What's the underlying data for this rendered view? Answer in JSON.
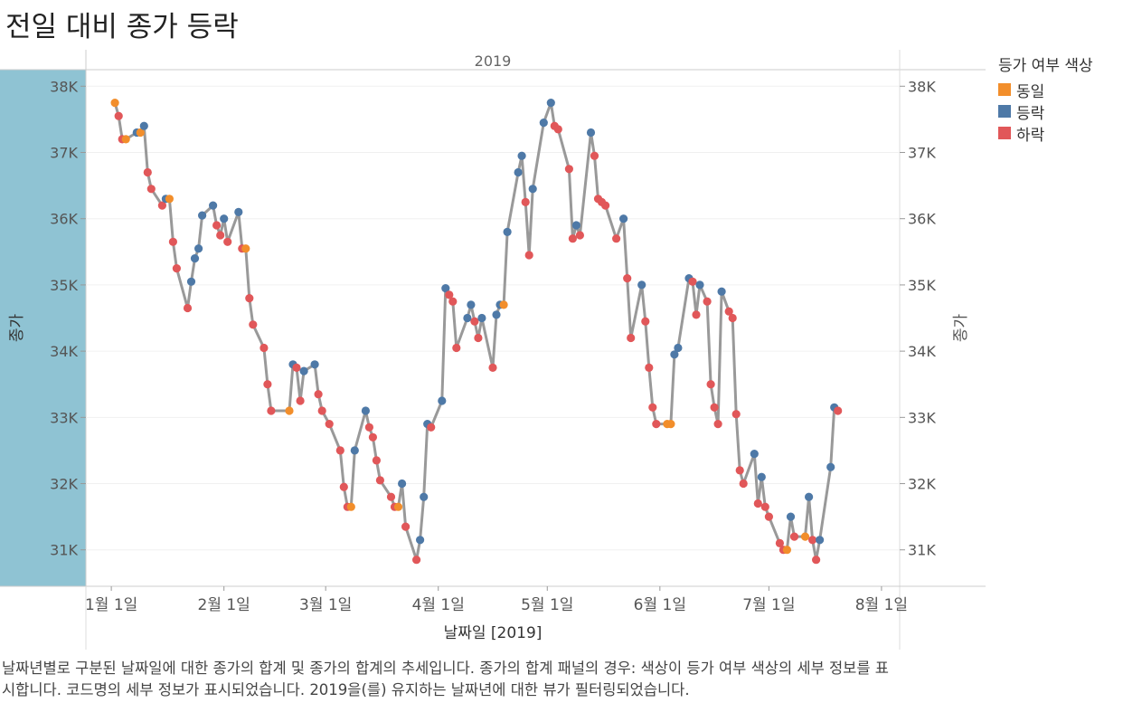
{
  "title": "전일 대비 종가 등락",
  "caption": "날짜년별로 구분된 날짜일에 대한 종가의 합계 및 종가의 합계의 추세입니다.  종가의 합계 패널의 경우:  색상이 등가 여부 색상의 세부 정보를 표시합니다.  코드명의 세부 정보가 표시되었습니다. 2019을(를) 유지하는 날짜년에 대한 뷰가 필터링되었습니다.",
  "legend": {
    "title": "등가 여부 색상",
    "items": [
      {
        "label": "동일",
        "color": "#f28e2b"
      },
      {
        "label": "등락",
        "color": "#4e79a7"
      },
      {
        "label": "하락",
        "color": "#e15759"
      }
    ]
  },
  "chart_data": {
    "type": "line",
    "panel_header": "2019",
    "ylabel_left": "종가",
    "ylabel_right": "종가",
    "xlabel": "날짜일 [2019]",
    "ylim": [
      30450,
      38250
    ],
    "yticks": [
      31000,
      32000,
      33000,
      34000,
      35000,
      36000,
      37000,
      38000
    ],
    "ytick_labels": [
      "31K",
      "32K",
      "33K",
      "34K",
      "35K",
      "36K",
      "37K",
      "38K"
    ],
    "xlim": [
      "2018-12-25",
      "2019-08-06"
    ],
    "xticks": [
      {
        "date": "2019-01-01",
        "label": "1월 1일"
      },
      {
        "date": "2019-02-01",
        "label": "2월 1일"
      },
      {
        "date": "2019-03-01",
        "label": "3월 1일"
      },
      {
        "date": "2019-04-01",
        "label": "4월 1일"
      },
      {
        "date": "2019-05-01",
        "label": "5월 1일"
      },
      {
        "date": "2019-06-01",
        "label": "6월 1일"
      },
      {
        "date": "2019-07-01",
        "label": "7월 1일"
      },
      {
        "date": "2019-08-01",
        "label": "8월 1일"
      }
    ],
    "line_color": "#999999",
    "category_colors": {
      "동일": "#f28e2b",
      "등락": "#4e79a7",
      "하락": "#e15759"
    },
    "points": [
      {
        "date": "2019-01-02",
        "close": 37750,
        "category": "동일"
      },
      {
        "date": "2019-01-03",
        "close": 37550,
        "category": "하락"
      },
      {
        "date": "2019-01-04",
        "close": 37200,
        "category": "하락"
      },
      {
        "date": "2019-01-05",
        "close": 37200,
        "category": "동일"
      },
      {
        "date": "2019-01-08",
        "close": 37300,
        "category": "등락"
      },
      {
        "date": "2019-01-09",
        "close": 37300,
        "category": "동일"
      },
      {
        "date": "2019-01-10",
        "close": 37400,
        "category": "등락"
      },
      {
        "date": "2019-01-11",
        "close": 36700,
        "category": "하락"
      },
      {
        "date": "2019-01-12",
        "close": 36450,
        "category": "하락"
      },
      {
        "date": "2019-01-15",
        "close": 36200,
        "category": "하락"
      },
      {
        "date": "2019-01-16",
        "close": 36300,
        "category": "등락"
      },
      {
        "date": "2019-01-17",
        "close": 36300,
        "category": "동일"
      },
      {
        "date": "2019-01-18",
        "close": 35650,
        "category": "하락"
      },
      {
        "date": "2019-01-19",
        "close": 35250,
        "category": "하락"
      },
      {
        "date": "2019-01-22",
        "close": 34650,
        "category": "하락"
      },
      {
        "date": "2019-01-23",
        "close": 35050,
        "category": "등락"
      },
      {
        "date": "2019-01-24",
        "close": 35400,
        "category": "등락"
      },
      {
        "date": "2019-01-25",
        "close": 35550,
        "category": "등락"
      },
      {
        "date": "2019-01-26",
        "close": 36050,
        "category": "등락"
      },
      {
        "date": "2019-01-29",
        "close": 36200,
        "category": "등락"
      },
      {
        "date": "2019-01-30",
        "close": 35900,
        "category": "하락"
      },
      {
        "date": "2019-01-31",
        "close": 35750,
        "category": "하락"
      },
      {
        "date": "2019-02-01",
        "close": 36000,
        "category": "등락"
      },
      {
        "date": "2019-02-02",
        "close": 35650,
        "category": "하락"
      },
      {
        "date": "2019-02-05",
        "close": 36100,
        "category": "등락"
      },
      {
        "date": "2019-02-06",
        "close": 35550,
        "category": "하락"
      },
      {
        "date": "2019-02-07",
        "close": 35550,
        "category": "동일"
      },
      {
        "date": "2019-02-08",
        "close": 34800,
        "category": "하락"
      },
      {
        "date": "2019-02-09",
        "close": 34400,
        "category": "하락"
      },
      {
        "date": "2019-02-12",
        "close": 34050,
        "category": "하락"
      },
      {
        "date": "2019-02-13",
        "close": 33500,
        "category": "하락"
      },
      {
        "date": "2019-02-14",
        "close": 33100,
        "category": "하락"
      },
      {
        "date": "2019-02-19",
        "close": 33100,
        "category": "동일"
      },
      {
        "date": "2019-02-20",
        "close": 33800,
        "category": "등락"
      },
      {
        "date": "2019-02-21",
        "close": 33750,
        "category": "하락"
      },
      {
        "date": "2019-02-22",
        "close": 33250,
        "category": "하락"
      },
      {
        "date": "2019-02-23",
        "close": 33700,
        "category": "등락"
      },
      {
        "date": "2019-02-26",
        "close": 33800,
        "category": "등락"
      },
      {
        "date": "2019-02-27",
        "close": 33350,
        "category": "하락"
      },
      {
        "date": "2019-02-28",
        "close": 33100,
        "category": "하락"
      },
      {
        "date": "2019-03-02",
        "close": 32900,
        "category": "하락"
      },
      {
        "date": "2019-03-05",
        "close": 32500,
        "category": "하락"
      },
      {
        "date": "2019-03-06",
        "close": 31950,
        "category": "하락"
      },
      {
        "date": "2019-03-07",
        "close": 31650,
        "category": "하락"
      },
      {
        "date": "2019-03-08",
        "close": 31650,
        "category": "동일"
      },
      {
        "date": "2019-03-09",
        "close": 32500,
        "category": "등락"
      },
      {
        "date": "2019-03-12",
        "close": 33100,
        "category": "등락"
      },
      {
        "date": "2019-03-13",
        "close": 32850,
        "category": "하락"
      },
      {
        "date": "2019-03-14",
        "close": 32700,
        "category": "하락"
      },
      {
        "date": "2019-03-15",
        "close": 32350,
        "category": "하락"
      },
      {
        "date": "2019-03-16",
        "close": 32050,
        "category": "하락"
      },
      {
        "date": "2019-03-19",
        "close": 31800,
        "category": "하락"
      },
      {
        "date": "2019-03-20",
        "close": 31650,
        "category": "하락"
      },
      {
        "date": "2019-03-21",
        "close": 31650,
        "category": "동일"
      },
      {
        "date": "2019-03-22",
        "close": 32000,
        "category": "등락"
      },
      {
        "date": "2019-03-23",
        "close": 31350,
        "category": "하락"
      },
      {
        "date": "2019-03-26",
        "close": 30850,
        "category": "하락"
      },
      {
        "date": "2019-03-27",
        "close": 31150,
        "category": "등락"
      },
      {
        "date": "2019-03-28",
        "close": 31800,
        "category": "등락"
      },
      {
        "date": "2019-03-29",
        "close": 32900,
        "category": "등락"
      },
      {
        "date": "2019-03-30",
        "close": 32850,
        "category": "하락"
      },
      {
        "date": "2019-04-02",
        "close": 33250,
        "category": "등락"
      },
      {
        "date": "2019-04-03",
        "close": 34950,
        "category": "등락"
      },
      {
        "date": "2019-04-04",
        "close": 34850,
        "category": "하락"
      },
      {
        "date": "2019-04-05",
        "close": 34750,
        "category": "하락"
      },
      {
        "date": "2019-04-06",
        "close": 34050,
        "category": "하락"
      },
      {
        "date": "2019-04-09",
        "close": 34500,
        "category": "등락"
      },
      {
        "date": "2019-04-10",
        "close": 34700,
        "category": "등락"
      },
      {
        "date": "2019-04-11",
        "close": 34450,
        "category": "하락"
      },
      {
        "date": "2019-04-12",
        "close": 34200,
        "category": "하락"
      },
      {
        "date": "2019-04-13",
        "close": 34500,
        "category": "등락"
      },
      {
        "date": "2019-04-16",
        "close": 33750,
        "category": "하락"
      },
      {
        "date": "2019-04-17",
        "close": 34550,
        "category": "등락"
      },
      {
        "date": "2019-04-18",
        "close": 34700,
        "category": "등락"
      },
      {
        "date": "2019-04-19",
        "close": 34700,
        "category": "동일"
      },
      {
        "date": "2019-04-20",
        "close": 35800,
        "category": "등락"
      },
      {
        "date": "2019-04-23",
        "close": 36700,
        "category": "등락"
      },
      {
        "date": "2019-04-24",
        "close": 36950,
        "category": "등락"
      },
      {
        "date": "2019-04-25",
        "close": 36250,
        "category": "하락"
      },
      {
        "date": "2019-04-26",
        "close": 35450,
        "category": "하락"
      },
      {
        "date": "2019-04-27",
        "close": 36450,
        "category": "등락"
      },
      {
        "date": "2019-04-30",
        "close": 37450,
        "category": "등락"
      },
      {
        "date": "2019-05-02",
        "close": 37750,
        "category": "등락"
      },
      {
        "date": "2019-05-03",
        "close": 37400,
        "category": "하락"
      },
      {
        "date": "2019-05-04",
        "close": 37350,
        "category": "하락"
      },
      {
        "date": "2019-05-07",
        "close": 36750,
        "category": "하락"
      },
      {
        "date": "2019-05-08",
        "close": 35700,
        "category": "하락"
      },
      {
        "date": "2019-05-09",
        "close": 35900,
        "category": "등락"
      },
      {
        "date": "2019-05-10",
        "close": 35750,
        "category": "하락"
      },
      {
        "date": "2019-05-13",
        "close": 37300,
        "category": "등락"
      },
      {
        "date": "2019-05-14",
        "close": 36950,
        "category": "하락"
      },
      {
        "date": "2019-05-15",
        "close": 36300,
        "category": "하락"
      },
      {
        "date": "2019-05-16",
        "close": 36250,
        "category": "하락"
      },
      {
        "date": "2019-05-17",
        "close": 36200,
        "category": "하락"
      },
      {
        "date": "2019-05-20",
        "close": 35700,
        "category": "하락"
      },
      {
        "date": "2019-05-22",
        "close": 36000,
        "category": "등락"
      },
      {
        "date": "2019-05-23",
        "close": 35100,
        "category": "하락"
      },
      {
        "date": "2019-05-24",
        "close": 34200,
        "category": "하락"
      },
      {
        "date": "2019-05-27",
        "close": 35000,
        "category": "등락"
      },
      {
        "date": "2019-05-28",
        "close": 34450,
        "category": "하락"
      },
      {
        "date": "2019-05-29",
        "close": 33750,
        "category": "하락"
      },
      {
        "date": "2019-05-30",
        "close": 33150,
        "category": "하락"
      },
      {
        "date": "2019-05-31",
        "close": 32900,
        "category": "하락"
      },
      {
        "date": "2019-06-03",
        "close": 32900,
        "category": "동일"
      },
      {
        "date": "2019-06-04",
        "close": 32900,
        "category": "동일"
      },
      {
        "date": "2019-06-05",
        "close": 33950,
        "category": "등락"
      },
      {
        "date": "2019-06-06",
        "close": 34050,
        "category": "등락"
      },
      {
        "date": "2019-06-09",
        "close": 35100,
        "category": "등락"
      },
      {
        "date": "2019-06-10",
        "close": 35050,
        "category": "하락"
      },
      {
        "date": "2019-06-11",
        "close": 34550,
        "category": "하락"
      },
      {
        "date": "2019-06-12",
        "close": 35000,
        "category": "등락"
      },
      {
        "date": "2019-06-14",
        "close": 34750,
        "category": "하락"
      },
      {
        "date": "2019-06-15",
        "close": 33500,
        "category": "하락"
      },
      {
        "date": "2019-06-16",
        "close": 33150,
        "category": "하락"
      },
      {
        "date": "2019-06-17",
        "close": 32900,
        "category": "하락"
      },
      {
        "date": "2019-06-18",
        "close": 34900,
        "category": "등락"
      },
      {
        "date": "2019-06-20",
        "close": 34600,
        "category": "하락"
      },
      {
        "date": "2019-06-21",
        "close": 34500,
        "category": "하락"
      },
      {
        "date": "2019-06-22",
        "close": 33050,
        "category": "하락"
      },
      {
        "date": "2019-06-23",
        "close": 32200,
        "category": "하락"
      },
      {
        "date": "2019-06-24",
        "close": 32000,
        "category": "하락"
      },
      {
        "date": "2019-06-27",
        "close": 32450,
        "category": "등락"
      },
      {
        "date": "2019-06-28",
        "close": 31700,
        "category": "하락"
      },
      {
        "date": "2019-06-29",
        "close": 32100,
        "category": "등락"
      },
      {
        "date": "2019-06-30",
        "close": 31650,
        "category": "하락"
      },
      {
        "date": "2019-07-01",
        "close": 31500,
        "category": "하락"
      },
      {
        "date": "2019-07-04",
        "close": 31100,
        "category": "하락"
      },
      {
        "date": "2019-07-05",
        "close": 31000,
        "category": "하락"
      },
      {
        "date": "2019-07-06",
        "close": 31000,
        "category": "동일"
      },
      {
        "date": "2019-07-07",
        "close": 31500,
        "category": "등락"
      },
      {
        "date": "2019-07-08",
        "close": 31200,
        "category": "하락"
      },
      {
        "date": "2019-07-11",
        "close": 31200,
        "category": "동일"
      },
      {
        "date": "2019-07-12",
        "close": 31800,
        "category": "등락"
      },
      {
        "date": "2019-07-13",
        "close": 31150,
        "category": "하락"
      },
      {
        "date": "2019-07-14",
        "close": 30850,
        "category": "하락"
      },
      {
        "date": "2019-07-15",
        "close": 31150,
        "category": "등락"
      },
      {
        "date": "2019-07-18",
        "close": 32250,
        "category": "등락"
      },
      {
        "date": "2019-07-19",
        "close": 33150,
        "category": "등락"
      },
      {
        "date": "2019-07-20",
        "close": 33100,
        "category": "하락"
      }
    ]
  }
}
